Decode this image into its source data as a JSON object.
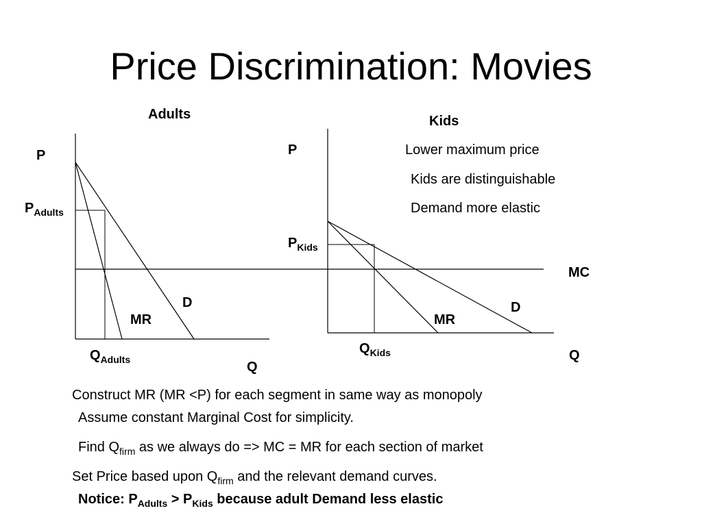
{
  "title": "Price Discrimination: Movies",
  "adults": {
    "heading": "Adults",
    "p_axis": "P",
    "p_label": "P",
    "p_sub": "Adults",
    "q_label": "Q",
    "q_sub": "Adults",
    "q_axis": "Q",
    "demand": "D",
    "mr": "MR"
  },
  "kids": {
    "heading": "Kids",
    "p_axis": "P",
    "p_label": "P",
    "p_sub": "Kids",
    "q_label": "Q",
    "q_sub": "Kids",
    "q_axis": "Q",
    "demand": "D",
    "mr": "MR",
    "notes": [
      "Lower maximum price",
      "Kids are distinguishable",
      "Demand more elastic"
    ]
  },
  "mc_label": "MC",
  "text": {
    "line1": "Construct MR (MR <P) for each segment in same way as monopoly",
    "line2": "Assume constant Marginal Cost for simplicity.",
    "line3_a": "Find Q",
    "line3_sub": "firm",
    "line3_b": " as we always do => MC = MR for each section of market",
    "line4_a": "Set Price based upon Q",
    "line4_sub": "firm",
    "line4_b": " and the relevant demand curves.",
    "line5_a": "Notice: P",
    "line5_sub1": "Adults",
    "line5_b": " > P",
    "line5_sub2": "Kids",
    "line5_c": " because adult Demand less elastic"
  }
}
